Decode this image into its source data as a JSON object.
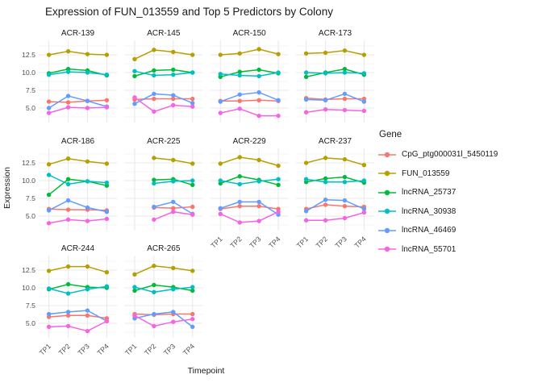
{
  "title": "Expression of FUN_013559 and Top 5 Predictors by Colony",
  "axes": {
    "x_title": "Timepoint",
    "y_title": "Expression",
    "x_tick_labels": [
      "TP1",
      "TP2",
      "TP3",
      "TP4"
    ],
    "y_tick_labels": [
      "5.0",
      "7.5",
      "10.0",
      "12.5"
    ]
  },
  "legend": {
    "title": "Gene",
    "position": "right"
  },
  "chart_data": {
    "type": "line",
    "facet_by": "Colony",
    "categories": [
      "TP1",
      "TP2",
      "TP3",
      "TP4"
    ],
    "xlabel": "Timepoint",
    "ylabel": "Expression",
    "ylim": [
      2.95,
      14.55
    ],
    "y_major_gridlines": [
      5.0,
      7.5,
      10.0,
      12.5
    ],
    "y_minor_gridlines": [
      3.75,
      6.25,
      8.75,
      11.25,
      13.75
    ],
    "grid": true,
    "legend_position": "right",
    "genes": [
      {
        "name": "CpG_ptg000031l_5450119",
        "color": "#F8766D"
      },
      {
        "name": "FUN_013559",
        "color": "#B79F00"
      },
      {
        "name": "lncRNA_25737",
        "color": "#00BA38"
      },
      {
        "name": "lncRNA_30938",
        "color": "#00BFC4"
      },
      {
        "name": "lncRNA_46469",
        "color": "#619CFF"
      },
      {
        "name": "lncRNA_55701",
        "color": "#F564E3"
      }
    ],
    "facets": [
      {
        "label": "ACR-139",
        "series": [
          {
            "name": "CpG_ptg000031l_5450119",
            "values": [
              5.9,
              5.8,
              6.0,
              6.1
            ]
          },
          {
            "name": "FUN_013559",
            "values": [
              12.5,
              13.0,
              12.6,
              12.5
            ]
          },
          {
            "name": "lncRNA_25737",
            "values": [
              9.9,
              10.5,
              10.3,
              9.6
            ]
          },
          {
            "name": "lncRNA_30938",
            "values": [
              9.7,
              10.1,
              10.0,
              9.7
            ]
          },
          {
            "name": "lncRNA_46469",
            "values": [
              5.0,
              6.7,
              6.0,
              5.2
            ]
          },
          {
            "name": "lncRNA_55701",
            "values": [
              4.3,
              5.1,
              5.0,
              5.1
            ]
          }
        ]
      },
      {
        "label": "ACR-145",
        "series": [
          {
            "name": "CpG_ptg000031l_5450119",
            "values": [
              6.2,
              6.3,
              6.3,
              6.3
            ]
          },
          {
            "name": "FUN_013559",
            "values": [
              11.9,
              13.2,
              12.9,
              12.5
            ]
          },
          {
            "name": "lncRNA_25737",
            "values": [
              9.5,
              10.3,
              10.4,
              10.0
            ]
          },
          {
            "name": "lncRNA_30938",
            "values": [
              10.2,
              9.6,
              9.7,
              10.0
            ]
          },
          {
            "name": "lncRNA_46469",
            "values": [
              5.6,
              7.0,
              6.8,
              5.7
            ]
          },
          {
            "name": "lncRNA_55701",
            "values": [
              6.5,
              4.5,
              5.4,
              5.2
            ]
          }
        ]
      },
      {
        "label": "ACR-150",
        "series": [
          {
            "name": "CpG_ptg000031l_5450119",
            "values": [
              6.0,
              6.0,
              6.1,
              6.0
            ]
          },
          {
            "name": "FUN_013559",
            "values": [
              12.5,
              12.7,
              13.3,
              12.6
            ]
          },
          {
            "name": "lncRNA_25737",
            "values": [
              9.4,
              10.1,
              10.4,
              9.9
            ]
          },
          {
            "name": "lncRNA_30938",
            "values": [
              9.8,
              9.6,
              9.5,
              10.0
            ]
          },
          {
            "name": "lncRNA_46469",
            "values": [
              5.9,
              6.9,
              7.2,
              6.1
            ]
          },
          {
            "name": "lncRNA_55701",
            "values": [
              4.3,
              4.9,
              3.9,
              3.9
            ]
          }
        ]
      },
      {
        "label": "ACR-173",
        "series": [
          {
            "name": "CpG_ptg000031l_5450119",
            "values": [
              6.4,
              6.2,
              6.3,
              6.3
            ]
          },
          {
            "name": "FUN_013559",
            "values": [
              12.7,
              12.8,
              13.1,
              12.5
            ]
          },
          {
            "name": "lncRNA_25737",
            "values": [
              9.4,
              10.0,
              10.5,
              9.7
            ]
          },
          {
            "name": "lncRNA_30938",
            "values": [
              10.0,
              9.9,
              10.0,
              9.9
            ]
          },
          {
            "name": "lncRNA_46469",
            "values": [
              6.2,
              6.1,
              7.0,
              5.9
            ]
          },
          {
            "name": "lncRNA_55701",
            "values": [
              4.4,
              4.8,
              4.7,
              4.6
            ]
          }
        ]
      },
      {
        "label": "ACR-186",
        "series": [
          {
            "name": "CpG_ptg000031l_5450119",
            "values": [
              6.0,
              5.9,
              5.9,
              5.8
            ]
          },
          {
            "name": "FUN_013559",
            "values": [
              12.3,
              13.1,
              12.7,
              12.4
            ]
          },
          {
            "name": "lncRNA_25737",
            "values": [
              8.0,
              10.2,
              9.9,
              9.3
            ]
          },
          {
            "name": "lncRNA_30938",
            "values": [
              10.8,
              9.5,
              9.9,
              9.7
            ]
          },
          {
            "name": "lncRNA_46469",
            "values": [
              5.8,
              7.2,
              6.2,
              5.6
            ]
          },
          {
            "name": "lncRNA_55701",
            "values": [
              4.0,
              4.5,
              4.3,
              4.6
            ]
          }
        ]
      },
      {
        "label": "ACR-225",
        "series": [
          {
            "name": "CpG_ptg000031l_5450119",
            "values": [
              null,
              6.2,
              6.1,
              6.3
            ]
          },
          {
            "name": "FUN_013559",
            "values": [
              null,
              13.2,
              12.9,
              12.4
            ]
          },
          {
            "name": "lncRNA_25737",
            "values": [
              null,
              10.1,
              10.2,
              9.4
            ]
          },
          {
            "name": "lncRNA_30938",
            "values": [
              null,
              9.6,
              9.9,
              10.0
            ]
          },
          {
            "name": "lncRNA_46469",
            "values": [
              null,
              6.3,
              7.0,
              5.3
            ]
          },
          {
            "name": "lncRNA_55701",
            "values": [
              null,
              4.5,
              5.6,
              5.2
            ]
          }
        ]
      },
      {
        "label": "ACR-229",
        "series": [
          {
            "name": "CpG_ptg000031l_5450119",
            "values": [
              6.0,
              6.4,
              6.4,
              6.0
            ]
          },
          {
            "name": "FUN_013559",
            "values": [
              12.4,
              13.3,
              12.9,
              12.1
            ]
          },
          {
            "name": "lncRNA_25737",
            "values": [
              9.6,
              10.6,
              10.1,
              9.4
            ]
          },
          {
            "name": "lncRNA_30938",
            "values": [
              10.0,
              9.5,
              9.9,
              10.2
            ]
          },
          {
            "name": "lncRNA_46469",
            "values": [
              6.1,
              7.0,
              7.0,
              5.2
            ]
          },
          {
            "name": "lncRNA_55701",
            "values": [
              5.3,
              4.1,
              4.3,
              5.6
            ]
          }
        ]
      },
      {
        "label": "ACR-237",
        "series": [
          {
            "name": "CpG_ptg000031l_5450119",
            "values": [
              6.0,
              6.6,
              6.4,
              6.3
            ]
          },
          {
            "name": "FUN_013559",
            "values": [
              12.5,
              13.2,
              13.0,
              12.2
            ]
          },
          {
            "name": "lncRNA_25737",
            "values": [
              9.8,
              10.3,
              10.5,
              9.7
            ]
          },
          {
            "name": "lncRNA_30938",
            "values": [
              10.2,
              9.8,
              9.8,
              10.0
            ]
          },
          {
            "name": "lncRNA_46469",
            "values": [
              5.7,
              7.3,
              7.2,
              6.0
            ]
          },
          {
            "name": "lncRNA_55701",
            "values": [
              4.4,
              4.4,
              4.7,
              5.5
            ]
          }
        ]
      },
      {
        "label": "ACR-244",
        "series": [
          {
            "name": "CpG_ptg000031l_5450119",
            "values": [
              5.9,
              6.1,
              6.1,
              5.7
            ]
          },
          {
            "name": "FUN_013559",
            "values": [
              12.4,
              13.0,
              13.0,
              12.2
            ]
          },
          {
            "name": "lncRNA_25737",
            "values": [
              9.8,
              10.5,
              10.1,
              10.0
            ]
          },
          {
            "name": "lncRNA_30938",
            "values": [
              9.9,
              9.2,
              9.8,
              10.2
            ]
          },
          {
            "name": "lncRNA_46469",
            "values": [
              6.3,
              6.6,
              6.8,
              5.3
            ]
          },
          {
            "name": "lncRNA_55701",
            "values": [
              4.5,
              4.6,
              3.9,
              5.3
            ]
          }
        ]
      },
      {
        "label": "ACR-265",
        "series": [
          {
            "name": "CpG_ptg000031l_5450119",
            "values": [
              6.3,
              6.2,
              6.3,
              6.3
            ]
          },
          {
            "name": "FUN_013559",
            "values": [
              11.9,
              13.1,
              12.8,
              12.4
            ]
          },
          {
            "name": "lncRNA_25737",
            "values": [
              9.6,
              10.4,
              10.1,
              9.6
            ]
          },
          {
            "name": "lncRNA_30938",
            "values": [
              10.1,
              9.4,
              9.8,
              10.1
            ]
          },
          {
            "name": "lncRNA_46469",
            "values": [
              5.7,
              6.3,
              6.6,
              4.5
            ]
          },
          {
            "name": "lncRNA_55701",
            "values": [
              6.1,
              4.6,
              5.2,
              5.6
            ]
          }
        ]
      }
    ],
    "style": {
      "major_grid_color": "#e8e8e8",
      "minor_grid_color": "#f3f3f3",
      "strip_text_color": "#1a1a1a",
      "tick_text_color": "#4d4d4d"
    }
  }
}
